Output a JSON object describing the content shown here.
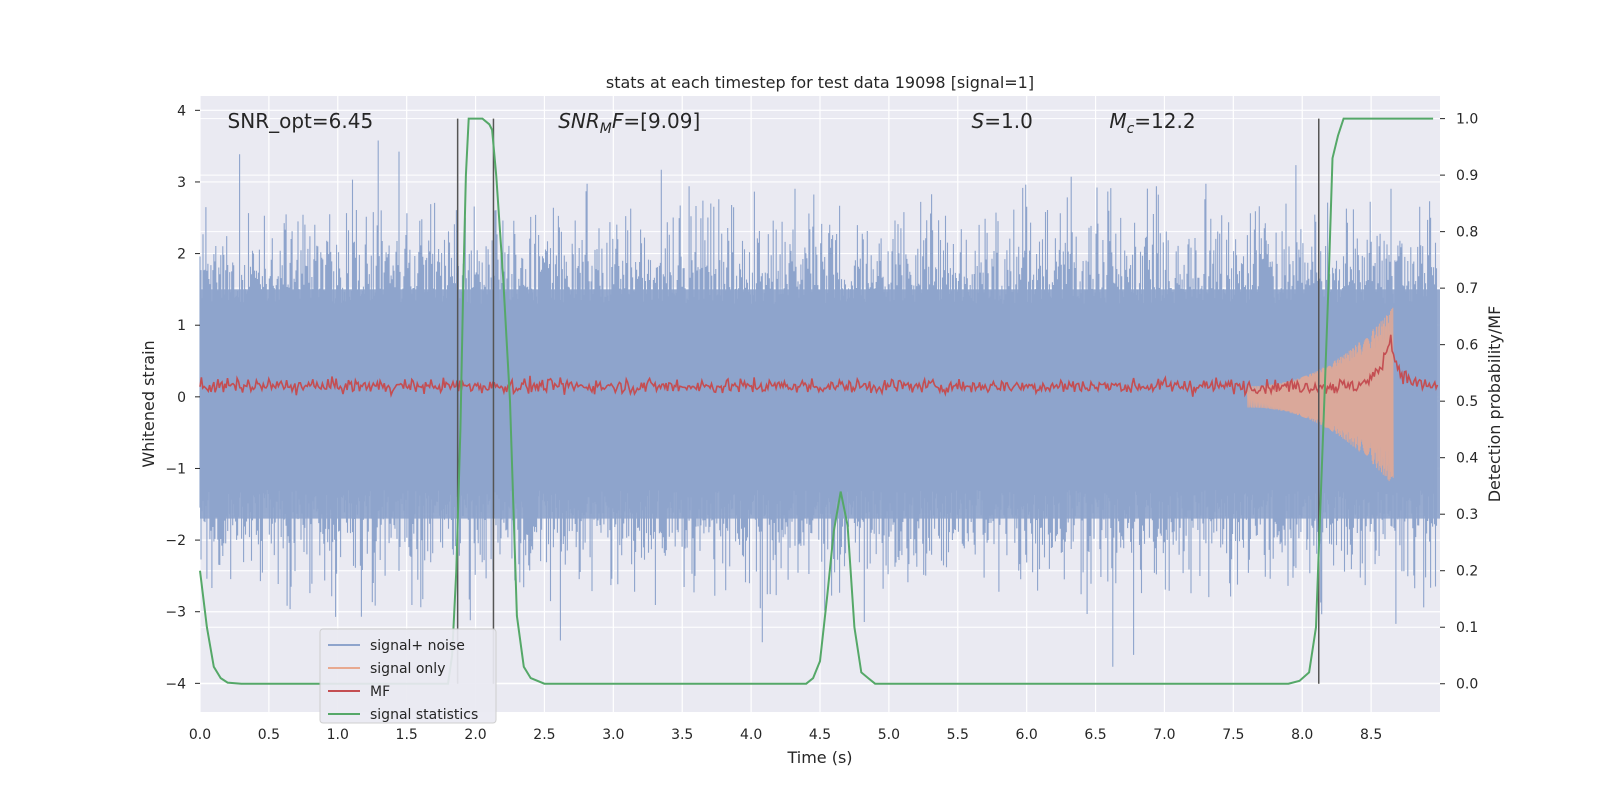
{
  "chart_data": {
    "type": "line",
    "title": "stats at each timestep for test data 19098 [signal=1]",
    "xlabel": "Time (s)",
    "ylabel": "Whitened strain",
    "ylabel_right": "Detection probability/MF",
    "xlim": [
      0.0,
      9.0
    ],
    "ylim": [
      -4.4,
      4.2
    ],
    "ylim_right": [
      -0.05,
      1.04
    ],
    "grid": true,
    "legend_placement": "lower-left",
    "x_ticks": [
      "0.0",
      "0.5",
      "1.0",
      "1.5",
      "2.0",
      "2.5",
      "3.0",
      "3.5",
      "4.0",
      "4.5",
      "5.0",
      "5.5",
      "6.0",
      "6.5",
      "7.0",
      "7.5",
      "8.0",
      "8.5"
    ],
    "y_ticks": [
      "4",
      "3",
      "2",
      "1",
      "0",
      "−1",
      "−2",
      "−3",
      "−4"
    ],
    "y_ticks_right": [
      "1.0",
      "0.9",
      "0.8",
      "0.7",
      "0.6",
      "0.5",
      "0.4",
      "0.3",
      "0.2",
      "0.1",
      "0.0"
    ],
    "annotations": [
      {
        "id": "snr-opt",
        "prefix": "SNR_opt=",
        "sub": "",
        "value": "6.45",
        "x": 0.2,
        "y": 3.85
      },
      {
        "id": "snr-mf",
        "prefix": "SNR",
        "sub": "M",
        "suffix_italic": "F",
        "value": "=[9.09]",
        "x": 2.6,
        "y": 3.85
      },
      {
        "id": "s",
        "prefix": "S",
        "sub": "",
        "value": "=1.0",
        "x": 5.6,
        "y": 3.85
      },
      {
        "id": "mc",
        "prefix": "M",
        "sub": "c",
        "value": "=12.2",
        "x": 6.6,
        "y": 3.85
      }
    ],
    "vertical_lines_x": [
      1.87,
      2.13,
      8.12
    ],
    "series": [
      {
        "name": "signal+ noise",
        "color": "#8ea4cc",
        "description_values": "whitened strain noise, approx ±2 with spikes to ±3.7",
        "envelope": [
          -1.7,
          1.5
        ]
      },
      {
        "name": "signal only",
        "color": "#e8a990",
        "chirp_start_x": 7.6,
        "chirp_end_x": 8.66,
        "chirp_peak_amplitude": 1.1
      },
      {
        "name": "MF",
        "color": "#c44e52",
        "baseline": 0.15,
        "peak_x": 8.65,
        "peak_y": 1.0
      },
      {
        "name": "signal statistics",
        "color": "#55a868",
        "x": [
          0.0,
          0.05,
          0.1,
          0.15,
          0.2,
          0.3,
          0.5,
          1.0,
          1.5,
          1.8,
          1.83,
          1.86,
          1.89,
          1.91,
          1.93,
          1.95,
          2.0,
          2.05,
          2.1,
          2.12,
          2.15,
          2.2,
          2.25,
          2.3,
          2.35,
          2.4,
          2.5,
          3.0,
          3.5,
          4.0,
          4.4,
          4.45,
          4.5,
          4.55,
          4.6,
          4.65,
          4.7,
          4.75,
          4.8,
          4.85,
          4.9,
          5.0,
          6.0,
          7.0,
          7.9,
          7.98,
          8.05,
          8.1,
          8.13,
          8.16,
          8.19,
          8.22,
          8.26,
          8.3,
          8.4,
          8.8,
          8.95
        ],
        "y": [
          0.2,
          0.1,
          0.03,
          0.01,
          0.002,
          0.0,
          0.0,
          0.0,
          0.0,
          0.0,
          0.05,
          0.2,
          0.45,
          0.7,
          0.9,
          1.0,
          1.0,
          1.0,
          0.99,
          0.98,
          0.9,
          0.72,
          0.5,
          0.12,
          0.03,
          0.01,
          0.0,
          0.0,
          0.0,
          0.0,
          0.0,
          0.01,
          0.04,
          0.15,
          0.27,
          0.34,
          0.28,
          0.1,
          0.02,
          0.01,
          0.0,
          0.0,
          0.0,
          0.0,
          0.0,
          0.005,
          0.02,
          0.1,
          0.3,
          0.5,
          0.7,
          0.93,
          0.97,
          1.0,
          1.0,
          1.0,
          1.0
        ]
      }
    ]
  }
}
